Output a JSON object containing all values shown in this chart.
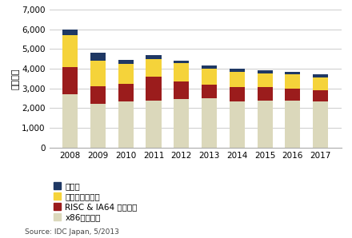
{
  "years": [
    "2008",
    "2009",
    "2010",
    "2011",
    "2012",
    "2013",
    "2014",
    "2015",
    "2016",
    "2017"
  ],
  "x86": [
    2700,
    2200,
    2350,
    2400,
    2450,
    2500,
    2350,
    2400,
    2400,
    2350
  ],
  "risc": [
    1400,
    900,
    900,
    1200,
    900,
    700,
    700,
    650,
    600,
    550
  ],
  "mainframe": [
    1600,
    1300,
    1000,
    900,
    950,
    800,
    800,
    700,
    700,
    650
  ],
  "other": [
    300,
    400,
    200,
    200,
    100,
    150,
    150,
    150,
    150,
    150
  ],
  "colors": {
    "x86": "#dbd8bb",
    "risc": "#9b1c1c",
    "mainframe": "#f5d33a",
    "other": "#1f3864"
  },
  "ylabel": "（億円）",
  "ylim": [
    0,
    7000
  ],
  "yticks": [
    0,
    1000,
    2000,
    3000,
    4000,
    5000,
    6000,
    7000
  ],
  "legend_labels": [
    "その他",
    "メインフレーム",
    "RISC & IA64 サーバー",
    "x86サーバー"
  ],
  "source_text": "Source: IDC Japan, 5/2013",
  "background_color": "#ffffff",
  "grid_color": "#cccccc"
}
